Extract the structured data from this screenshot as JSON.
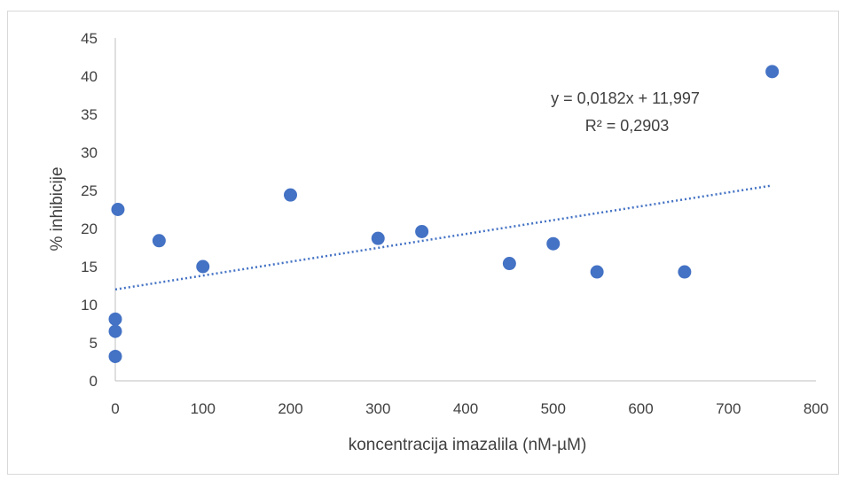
{
  "chart_data": {
    "type": "scatter",
    "xlabel": "koncentracija imazalila (nM-µM)",
    "ylabel": "% inhibicije",
    "xlim": [
      0,
      800
    ],
    "ylim": [
      0,
      45
    ],
    "xticks": [
      0,
      100,
      200,
      300,
      400,
      500,
      600,
      700,
      800
    ],
    "yticks": [
      0,
      5,
      10,
      15,
      20,
      25,
      30,
      35,
      40,
      45
    ],
    "grid": false,
    "legend": "none",
    "colors": {
      "points": "#4472c4",
      "trendline": "#4472c4",
      "axis": "#bfbfbf"
    },
    "points": [
      {
        "x": 0,
        "y": 3.2
      },
      {
        "x": 0,
        "y": 6.5
      },
      {
        "x": 0,
        "y": 8.1
      },
      {
        "x": 3,
        "y": 22.5
      },
      {
        "x": 50,
        "y": 18.4
      },
      {
        "x": 100,
        "y": 15.0
      },
      {
        "x": 200,
        "y": 24.4
      },
      {
        "x": 300,
        "y": 18.7
      },
      {
        "x": 350,
        "y": 19.6
      },
      {
        "x": 450,
        "y": 15.4
      },
      {
        "x": 500,
        "y": 18.0
      },
      {
        "x": 550,
        "y": 14.3
      },
      {
        "x": 650,
        "y": 14.3
      },
      {
        "x": 750,
        "y": 40.6
      }
    ],
    "trendline": {
      "type": "linear",
      "slope": 0.0182,
      "intercept": 11.997,
      "x_range": [
        0,
        750
      ],
      "style": "dotted"
    },
    "annotations": {
      "equation": "y = 0,0182x + 11,997",
      "r_squared": "R² = 0,2903"
    }
  }
}
